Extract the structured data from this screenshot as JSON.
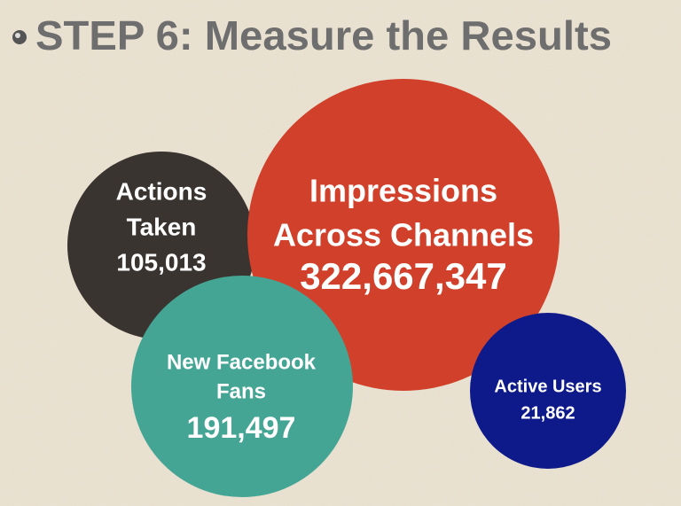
{
  "title": "STEP 6: Measure the Results",
  "circles": [
    {
      "label": [
        "Actions",
        "Taken"
      ],
      "value": "105,013",
      "color": "#3a3430"
    },
    {
      "label": [
        "Impressions",
        "Across Channels"
      ],
      "value": "322,667,347",
      "color": "#d0402a"
    },
    {
      "label": [
        "New Facebook",
        "Fans"
      ],
      "value": "191,497",
      "color": "#45a595"
    },
    {
      "label": [
        "Active Users"
      ],
      "value": "21,862",
      "color": "#0f1a8a"
    }
  ]
}
